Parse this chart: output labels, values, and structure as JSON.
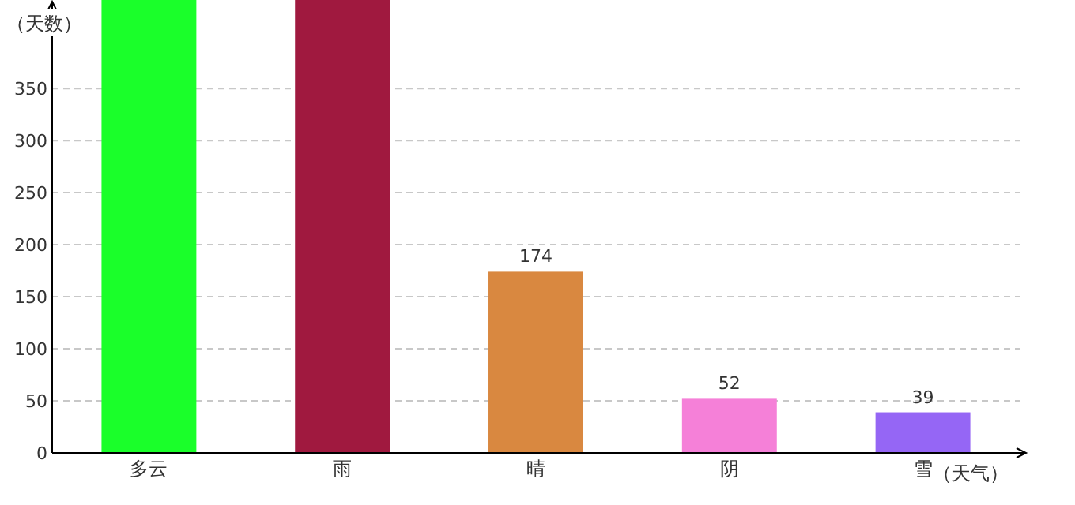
{
  "chart_data": {
    "type": "bar",
    "xlabel": "（天气）",
    "ylabel": "（天数）",
    "categories": [
      "多云",
      "雨",
      "晴",
      "阴",
      "雪"
    ],
    "values": [
      435,
      435,
      174,
      52,
      39
    ],
    "value_labels": [
      null,
      null,
      "174",
      "52",
      "39"
    ],
    "colors": [
      "#1aff2a",
      "#a0193f",
      "#d98840",
      "#f580d8",
      "#9566f5"
    ],
    "ylim": [
      0,
      435
    ],
    "yticks": [
      0,
      50,
      100,
      150,
      200,
      250,
      300,
      350
    ],
    "grid": "y"
  }
}
